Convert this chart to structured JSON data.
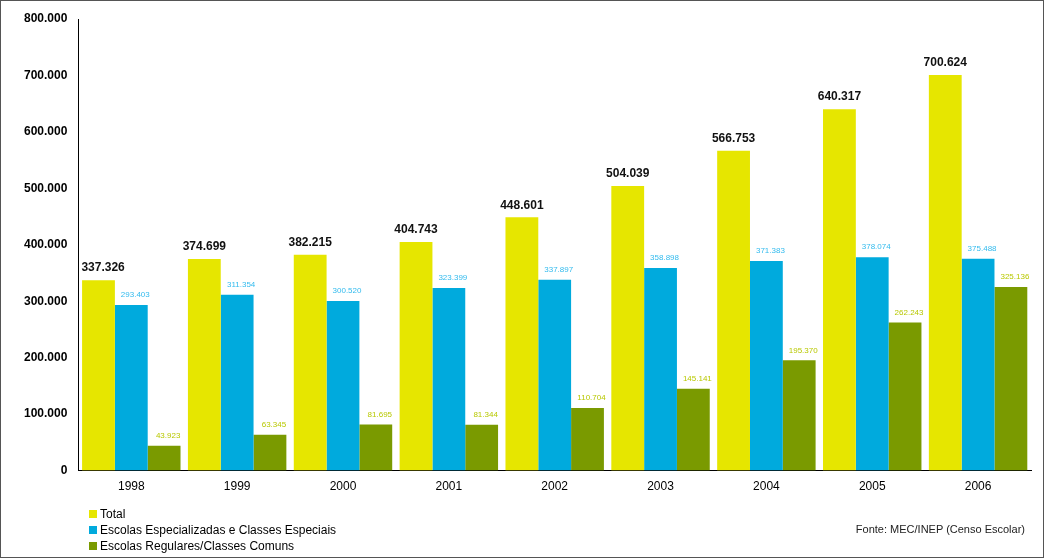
{
  "chart_data": {
    "type": "bar",
    "categories": [
      "1998",
      "1999",
      "2000",
      "2001",
      "2002",
      "2003",
      "2004",
      "2005",
      "2006"
    ],
    "series": [
      {
        "name": "Total",
        "color": "#e6e600",
        "values": [
          337326,
          374699,
          382215,
          404743,
          448601,
          504039,
          566753,
          640317,
          700624
        ],
        "value_labels": [
          "337.326",
          "374.699",
          "382.215",
          "404.743",
          "448.601",
          "504.039",
          "566.753",
          "640.317",
          "700.624"
        ]
      },
      {
        "name": "Escolas Especializadas e Classes Especiais",
        "color": "#00aadd",
        "values": [
          293403,
          311354,
          300520,
          323399,
          337897,
          358898,
          371383,
          378074,
          375488
        ],
        "value_labels": [
          "293.403",
          "311.354",
          "300.520",
          "323.399",
          "337.897",
          "358.898",
          "371.383",
          "378.074",
          "375.488"
        ]
      },
      {
        "name": "Escolas Regulares/Classes Comuns",
        "color": "#7a9a00",
        "values": [
          43923,
          63345,
          81695,
          81344,
          110704,
          145141,
          195370,
          262243,
          325136
        ],
        "value_labels": [
          "43.923",
          "63.345",
          "81.695",
          "81.344",
          "110.704",
          "145.141",
          "195.370",
          "262.243",
          "325.136"
        ]
      }
    ],
    "ylim": [
      0,
      800000
    ],
    "yticks": [
      {
        "value": 0,
        "label": "0"
      },
      {
        "value": 100000,
        "label": "100.000"
      },
      {
        "value": 200000,
        "label": "200.000"
      },
      {
        "value": 300000,
        "label": "300.000"
      },
      {
        "value": 400000,
        "label": "400.000"
      },
      {
        "value": 500000,
        "label": "500.000"
      },
      {
        "value": 600000,
        "label": "600.000"
      },
      {
        "value": 700000,
        "label": "700.000"
      },
      {
        "value": 800000,
        "label": "800.000"
      }
    ],
    "grid": false,
    "legend": "bottom left",
    "annotations": [
      "Fonte: MEC/INEP (Censo Escolar)"
    ]
  }
}
